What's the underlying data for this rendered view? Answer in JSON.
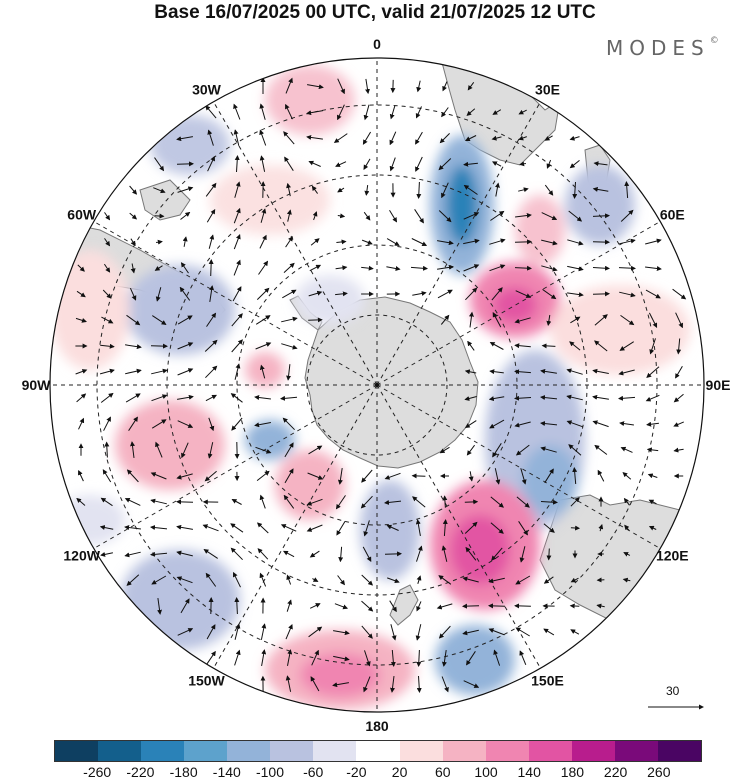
{
  "title": "Base 16/07/2025 00 UTC, valid 21/07/2025 12 UTC",
  "brand": {
    "name": "MODES",
    "mark": "©"
  },
  "projection": "south polar stereographic",
  "grid": {
    "meridians": true,
    "parallels": true,
    "style": "dashed"
  },
  "longitude_labels": [
    {
      "id": "lon-0",
      "text": "0",
      "deg": 0
    },
    {
      "id": "lon-30e",
      "text": "30E",
      "deg": 30
    },
    {
      "id": "lon-60e",
      "text": "60E",
      "deg": 60
    },
    {
      "id": "lon-90e",
      "text": "90E",
      "deg": 90
    },
    {
      "id": "lon-120e",
      "text": "120E",
      "deg": 120
    },
    {
      "id": "lon-150e",
      "text": "150E",
      "deg": 150
    },
    {
      "id": "lon-180",
      "text": "180",
      "deg": 180
    },
    {
      "id": "lon-150w",
      "text": "150W",
      "deg": 210
    },
    {
      "id": "lon-120w",
      "text": "120W",
      "deg": 240
    },
    {
      "id": "lon-90w",
      "text": "90W",
      "deg": 270
    },
    {
      "id": "lon-60w",
      "text": "60W",
      "deg": 300
    },
    {
      "id": "lon-30w",
      "text": "30W",
      "deg": 330
    }
  ],
  "reference_vector": {
    "value": "30"
  },
  "colorbar": {
    "ticks": [
      "-260",
      "-220",
      "-180",
      "-140",
      "-100",
      "-60",
      "-20",
      "20",
      "60",
      "100",
      "140",
      "180",
      "220",
      "260"
    ],
    "colors": [
      "#0e3f61",
      "#135f8c",
      "#2a82b8",
      "#5da2cc",
      "#93b3d9",
      "#b9c2e0",
      "#e2e3f1",
      "#ffffff",
      "#fbdede",
      "#f5b3c3",
      "#f085b1",
      "#e254a3",
      "#b81d8d",
      "#7a0a7a",
      "#4a0563"
    ]
  },
  "colors": {
    "land": "#dddddd",
    "coast": "#777777",
    "grid": "#222222",
    "arrow": "#111111"
  }
}
